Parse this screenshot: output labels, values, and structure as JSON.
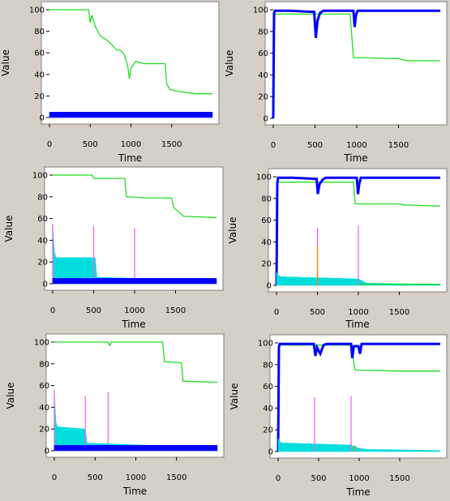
{
  "chart_data": [
    {
      "type": "line",
      "xlabel": "Time",
      "ylabel": "Value",
      "xlim": [
        0,
        2000
      ],
      "ylim": [
        0,
        100
      ],
      "xticks": [
        0,
        500,
        1000,
        1500
      ],
      "yticks": [
        0,
        20,
        40,
        60,
        80,
        100
      ],
      "series": [
        {
          "color": "#22dd22",
          "style": "line",
          "x": [
            0,
            480,
            500,
            520,
            560,
            620,
            700,
            760,
            820,
            880,
            920,
            960,
            980,
            1000,
            1060,
            1160,
            1300,
            1420,
            1440,
            1480,
            1600,
            1800,
            2000
          ],
          "y": [
            100,
            100,
            88,
            95,
            85,
            76,
            72,
            68,
            63,
            62,
            58,
            48,
            36,
            46,
            52,
            50,
            50,
            50,
            31,
            26,
            24,
            22,
            22
          ]
        },
        {
          "color": "#0000ff",
          "style": "band",
          "x": [
            0,
            2000
          ],
          "low": [
            0,
            0
          ],
          "high": [
            5,
            5
          ]
        }
      ]
    },
    {
      "type": "line",
      "xlabel": "Time",
      "ylabel": "Value",
      "xlim": [
        0,
        2000
      ],
      "ylim": [
        0,
        100
      ],
      "xticks": [
        0,
        500,
        1000,
        1500
      ],
      "yticks": [
        0,
        20,
        40,
        60,
        80,
        100
      ],
      "series": [
        {
          "color": "#22dd22",
          "style": "line",
          "x": [
            0,
            500,
            520,
            540,
            900,
            920,
            960,
            1000,
            1500,
            1600,
            2000
          ],
          "y": [
            96,
            96,
            96,
            96,
            96,
            96,
            56,
            56,
            55,
            53,
            53
          ]
        },
        {
          "color": "#0000ff",
          "style": "line",
          "x": [
            0,
            10,
            20,
            60,
            200,
            490,
            510,
            530,
            560,
            600,
            960,
            975,
            990,
            1010,
            2000
          ],
          "y": [
            0,
            97,
            99,
            99,
            99,
            98,
            74,
            90,
            97,
            99,
            99,
            84,
            95,
            99,
            99
          ]
        }
      ]
    },
    {
      "type": "line",
      "xlabel": "Time",
      "ylabel": "Value",
      "xlim": [
        0,
        2000
      ],
      "ylim": [
        0,
        100
      ],
      "xticks": [
        0,
        500,
        1000,
        1500
      ],
      "yticks": [
        0,
        20,
        40,
        60,
        80,
        100
      ],
      "series": [
        {
          "color": "#22dd22",
          "style": "line",
          "x": [
            0,
            480,
            500,
            880,
            900,
            1150,
            1450,
            1480,
            1600,
            2000
          ],
          "y": [
            100,
            100,
            97,
            97,
            80,
            79,
            79,
            70,
            62,
            61
          ]
        },
        {
          "color": "#00dddd",
          "style": "band",
          "x": [
            0,
            20,
            40,
            520,
            540,
            2000
          ],
          "low": [
            0,
            0,
            0,
            0,
            0,
            0
          ],
          "high": [
            55,
            30,
            24,
            24,
            6,
            3
          ]
        },
        {
          "color": "#ee66ee",
          "style": "spike",
          "x": [
            0,
            500,
            1000
          ],
          "y": [
            55,
            53,
            51
          ]
        },
        {
          "color": "#0000ff",
          "style": "band",
          "x": [
            0,
            2000
          ],
          "low": [
            0,
            0
          ],
          "high": [
            5,
            5
          ]
        }
      ]
    },
    {
      "type": "line",
      "xlabel": "Time",
      "ylabel": "Value",
      "xlim": [
        0,
        2000
      ],
      "ylim": [
        0,
        100
      ],
      "xticks": [
        0,
        500,
        1000,
        1500
      ],
      "yticks": [
        0,
        20,
        40,
        60,
        80,
        100
      ],
      "series": [
        {
          "color": "#22dd22",
          "style": "line",
          "x": [
            0,
            500,
            520,
            540,
            940,
            960,
            1000,
            1500,
            1550,
            2000
          ],
          "y": [
            95,
            95,
            95,
            95,
            95,
            75,
            75,
            75,
            74,
            73
          ]
        },
        {
          "color": "#0000ff",
          "style": "line",
          "x": [
            0,
            10,
            20,
            60,
            200,
            490,
            505,
            525,
            560,
            600,
            980,
            995,
            1010,
            1030,
            2000
          ],
          "y": [
            0,
            94,
            99,
            99,
            99,
            98,
            84,
            93,
            97,
            99,
            99,
            84,
            93,
            99,
            99
          ]
        },
        {
          "color": "#00dddd",
          "style": "band",
          "x": [
            0,
            20,
            40,
            1000,
            1100,
            2000
          ],
          "low": [
            0,
            0,
            0,
            0,
            0,
            0
          ],
          "high": [
            12,
            10,
            8,
            6,
            2,
            1
          ]
        },
        {
          "color": "#ee66ee",
          "style": "spike",
          "x": [
            500,
            1000
          ],
          "y": [
            53,
            55
          ]
        },
        {
          "color": "#ff8800",
          "style": "spike",
          "x": [
            500
          ],
          "y": [
            36
          ]
        },
        {
          "color": "#22dd22",
          "style": "line",
          "x": [
            1000,
            1200,
            2000
          ],
          "y": [
            1,
            1,
            1
          ]
        }
      ]
    },
    {
      "type": "line",
      "xlabel": "Time",
      "ylabel": "Value",
      "xlim": [
        0,
        2000
      ],
      "ylim": [
        0,
        100
      ],
      "xticks": [
        0,
        500,
        1000,
        1500
      ],
      "yticks": [
        0,
        20,
        40,
        60,
        80,
        100
      ],
      "series": [
        {
          "color": "#22dd22",
          "style": "line",
          "x": [
            0,
            660,
            680,
            700,
            1050,
            1330,
            1350,
            1560,
            1580,
            2000
          ],
          "y": [
            100,
            100,
            97,
            100,
            100,
            100,
            82,
            81,
            64,
            63
          ]
        },
        {
          "color": "#00dddd",
          "style": "band",
          "x": [
            0,
            20,
            40,
            380,
            400,
            2000
          ],
          "low": [
            0,
            0,
            0,
            0,
            0,
            0
          ],
          "high": [
            55,
            26,
            22,
            20,
            7,
            3
          ]
        },
        {
          "color": "#ee66ee",
          "style": "spike",
          "x": [
            0,
            380,
            660
          ],
          "y": [
            56,
            50,
            54
          ]
        },
        {
          "color": "#0000ff",
          "style": "band",
          "x": [
            0,
            2000
          ],
          "low": [
            0,
            0
          ],
          "high": [
            5,
            5
          ]
        }
      ]
    },
    {
      "type": "line",
      "xlabel": "Time",
      "ylabel": "Value",
      "xlim": [
        0,
        2000
      ],
      "ylim": [
        0,
        100
      ],
      "xticks": [
        0,
        500,
        1000,
        1500
      ],
      "yticks": [
        0,
        20,
        40,
        60,
        80,
        100
      ],
      "series": [
        {
          "color": "#22dd22",
          "style": "line",
          "x": [
            0,
            450,
            470,
            900,
            920,
            950,
            1000,
            1500,
            2000
          ],
          "y": [
            98,
            98,
            98,
            98,
            88,
            75,
            75,
            74,
            74
          ]
        },
        {
          "color": "#0000ff",
          "style": "line",
          "x": [
            0,
            10,
            20,
            60,
            200,
            440,
            460,
            480,
            520,
            560,
            600,
            900,
            915,
            935,
            990,
            1010,
            1030,
            2000
          ],
          "y": [
            0,
            96,
            99,
            99,
            99,
            99,
            88,
            96,
            90,
            98,
            99,
            99,
            86,
            97,
            97,
            90,
            99,
            99
          ]
        },
        {
          "color": "#00dddd",
          "style": "band",
          "x": [
            0,
            20,
            40,
            900,
            1000,
            1100,
            2000
          ],
          "low": [
            0,
            0,
            0,
            0,
            0,
            0,
            0
          ],
          "high": [
            12,
            10,
            8,
            6,
            3,
            2,
            1
          ]
        },
        {
          "color": "#ee66ee",
          "style": "spike",
          "x": [
            450,
            900
          ],
          "y": [
            50,
            51
          ]
        },
        {
          "color": "#ff8800",
          "style": "spike",
          "x": [
            950
          ],
          "y": [
            6
          ]
        }
      ]
    }
  ]
}
